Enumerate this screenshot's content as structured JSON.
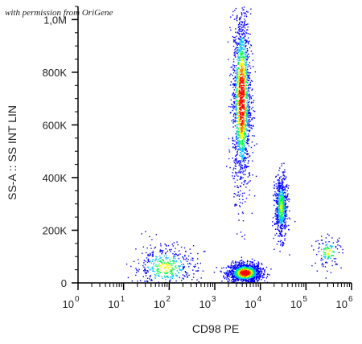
{
  "watermark": "with permission from OriGene",
  "chart_data": {
    "type": "scatter",
    "xlabel": "CD98 PE",
    "ylabel": "SS-A :: SS INT LIN",
    "x_scale": "log",
    "xlim": [
      1,
      1000000
    ],
    "ylim": [
      0,
      1050000
    ],
    "y_ticks": [
      {
        "value": 0,
        "label": "0"
      },
      {
        "value": 200000,
        "label": "200K"
      },
      {
        "value": 400000,
        "label": "400K"
      },
      {
        "value": 600000,
        "label": "600K"
      },
      {
        "value": 800000,
        "label": "800K"
      },
      {
        "value": 1000000,
        "label": "1,0M"
      }
    ],
    "x_ticks": [
      {
        "value": 1,
        "base": "10",
        "exp": "0"
      },
      {
        "value": 10,
        "base": "10",
        "exp": "1"
      },
      {
        "value": 100,
        "base": "10",
        "exp": "2"
      },
      {
        "value": 1000,
        "base": "10",
        "exp": "3"
      },
      {
        "value": 10000,
        "base": "10",
        "exp": "4"
      },
      {
        "value": 100000,
        "base": "10",
        "exp": "5"
      },
      {
        "value": 1000000,
        "base": "10",
        "exp": "6"
      }
    ],
    "populations": [
      {
        "x_center": 4500,
        "y_center": 40000,
        "x_spread_decades": 0.18,
        "y_spread": 18000,
        "count": 1400
      },
      {
        "x_center": 3800,
        "y_center": 700000,
        "x_spread_decades": 0.1,
        "y_spread": 170000,
        "count": 1700
      },
      {
        "x_center": 28000,
        "y_center": 290000,
        "x_spread_decades": 0.07,
        "y_spread": 60000,
        "count": 650
      },
      {
        "x_center": 80,
        "y_center": 60000,
        "x_spread_decades": 0.35,
        "y_spread": 45000,
        "count": 450
      },
      {
        "x_center": 300000,
        "y_center": 120000,
        "x_spread_decades": 0.15,
        "y_spread": 30000,
        "count": 120
      }
    ],
    "color_scale": [
      "#0000ff",
      "#00c0ff",
      "#00ff40",
      "#ffff00",
      "#ff8000",
      "#ff0000"
    ],
    "grid": false
  }
}
